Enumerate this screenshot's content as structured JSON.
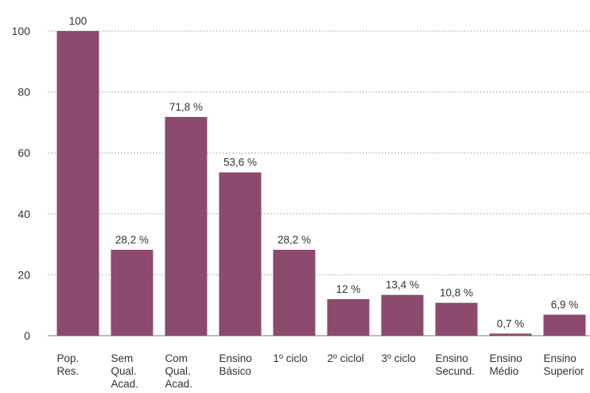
{
  "chart_data": {
    "type": "bar",
    "categories": [
      [
        "Pop.",
        "Res."
      ],
      [
        "Sem",
        "Qual.",
        "Acad."
      ],
      [
        "Com",
        "Qual.",
        "Acad."
      ],
      [
        "Ensino",
        "Básico"
      ],
      [
        "1º ciclo"
      ],
      [
        "2º ciclol"
      ],
      [
        "3º ciclo"
      ],
      [
        "Ensino",
        "Secund."
      ],
      [
        "Ensino",
        "Médio"
      ],
      [
        "Ensino",
        "Superior"
      ]
    ],
    "values": [
      100,
      28.2,
      71.8,
      53.6,
      28.2,
      12,
      13.4,
      10.8,
      0.7,
      6.9
    ],
    "data_labels": [
      "100",
      "28,2 %",
      "71,8 %",
      "53,6 %",
      "28,2 %",
      "12 %",
      "13,4 %",
      "10,8 %",
      "0,7 %",
      "6,9 %"
    ],
    "ylim": [
      0,
      100
    ],
    "yticks": [
      0,
      20,
      40,
      60,
      80,
      100
    ],
    "grid": true,
    "bar_color": "#8b4a6e"
  }
}
